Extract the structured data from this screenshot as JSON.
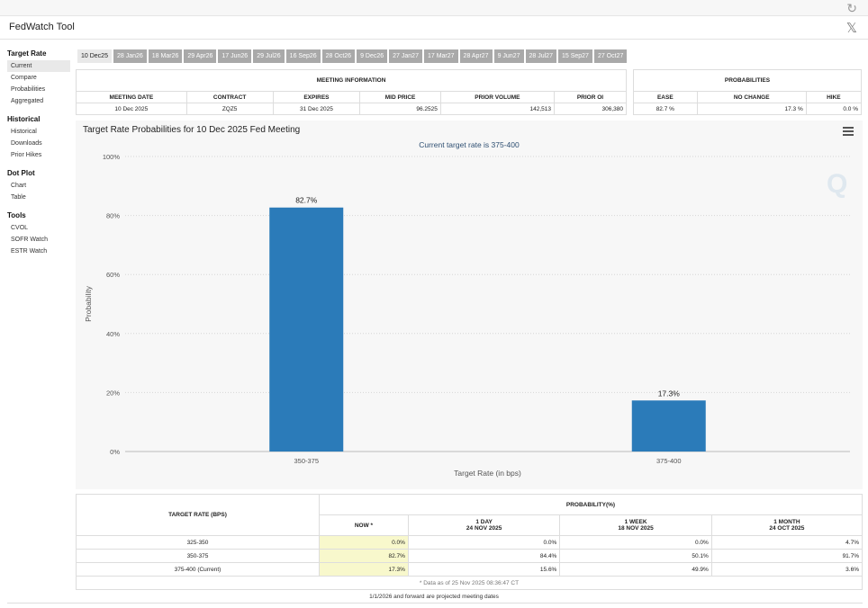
{
  "app": {
    "title": "FedWatch Tool"
  },
  "sidebar": {
    "sections": [
      {
        "heading": "Target Rate",
        "items": [
          "Current",
          "Compare",
          "Probabilities",
          "Aggregated"
        ]
      },
      {
        "heading": "Historical",
        "items": [
          "Historical",
          "Downloads",
          "Prior Hikes"
        ]
      },
      {
        "heading": "Dot Plot",
        "items": [
          "Chart",
          "Table"
        ]
      },
      {
        "heading": "Tools",
        "items": [
          "CVOL",
          "SOFR Watch",
          "ESTR Watch"
        ]
      }
    ],
    "active_item": "Current"
  },
  "tabs": [
    "10 Dec25",
    "28 Jan26",
    "18 Mar26",
    "29 Apr26",
    "17 Jun26",
    "29 Jul26",
    "16 Sep26",
    "28 Oct26",
    "9 Dec26",
    "27 Jan27",
    "17 Mar27",
    "28 Apr27",
    "9 Jun27",
    "28 Jul27",
    "15 Sep27",
    "27 Oct27"
  ],
  "active_tab": "10 Dec25",
  "meeting_info": {
    "heading": "MEETING INFORMATION",
    "columns": [
      "MEETING DATE",
      "CONTRACT",
      "EXPIRES",
      "MID PRICE",
      "PRIOR VOLUME",
      "PRIOR OI"
    ],
    "row": [
      "10 Dec 2025",
      "ZQZ5",
      "31 Dec 2025",
      "96.2525",
      "142,513",
      "306,380"
    ]
  },
  "probabilities": {
    "heading": "PROBABILITIES",
    "columns": [
      "EASE",
      "NO CHANGE",
      "HIKE"
    ],
    "row": [
      "82.7 %",
      "17.3 %",
      "0.0 %"
    ]
  },
  "chart": {
    "title": "Target Rate Probabilities for 10 Dec 2025 Fed Meeting",
    "subtitle": "Current target rate is 375-400"
  },
  "chart_data": {
    "type": "bar",
    "categories": [
      "350-375",
      "375-400"
    ],
    "values": [
      82.7,
      17.3
    ],
    "data_labels": [
      "82.7%",
      "17.3%"
    ],
    "xlabel": "Target Rate (in bps)",
    "ylabel": "Probability",
    "ylim": [
      0,
      100
    ],
    "yticks": [
      "0%",
      "20%",
      "40%",
      "60%",
      "80%",
      "100%"
    ],
    "grid": true,
    "bar_color": "#2b7bb9"
  },
  "bottom_table": {
    "col_rate": "TARGET RATE (BPS)",
    "col_prob": "PROBABILITY(%)",
    "sub_cols": [
      {
        "label": "NOW *",
        "date": ""
      },
      {
        "label": "1 DAY",
        "date": "24 NOV 2025"
      },
      {
        "label": "1 WEEK",
        "date": "18 NOV 2025"
      },
      {
        "label": "1 MONTH",
        "date": "24 OCT 2025"
      }
    ],
    "rows": [
      {
        "rate": "325-350",
        "values": [
          "0.0%",
          "0.0%",
          "0.0%",
          "4.7%"
        ]
      },
      {
        "rate": "350-375",
        "values": [
          "82.7%",
          "84.4%",
          "50.1%",
          "91.7%"
        ]
      },
      {
        "rate": "375-400 (Current)",
        "values": [
          "17.3%",
          "15.6%",
          "49.9%",
          "3.6%"
        ]
      }
    ],
    "footnote": "* Data as of 25 Nov 2025 08:36:47 CT"
  },
  "projection_note": "1/1/2026 and forward are projected meeting dates"
}
